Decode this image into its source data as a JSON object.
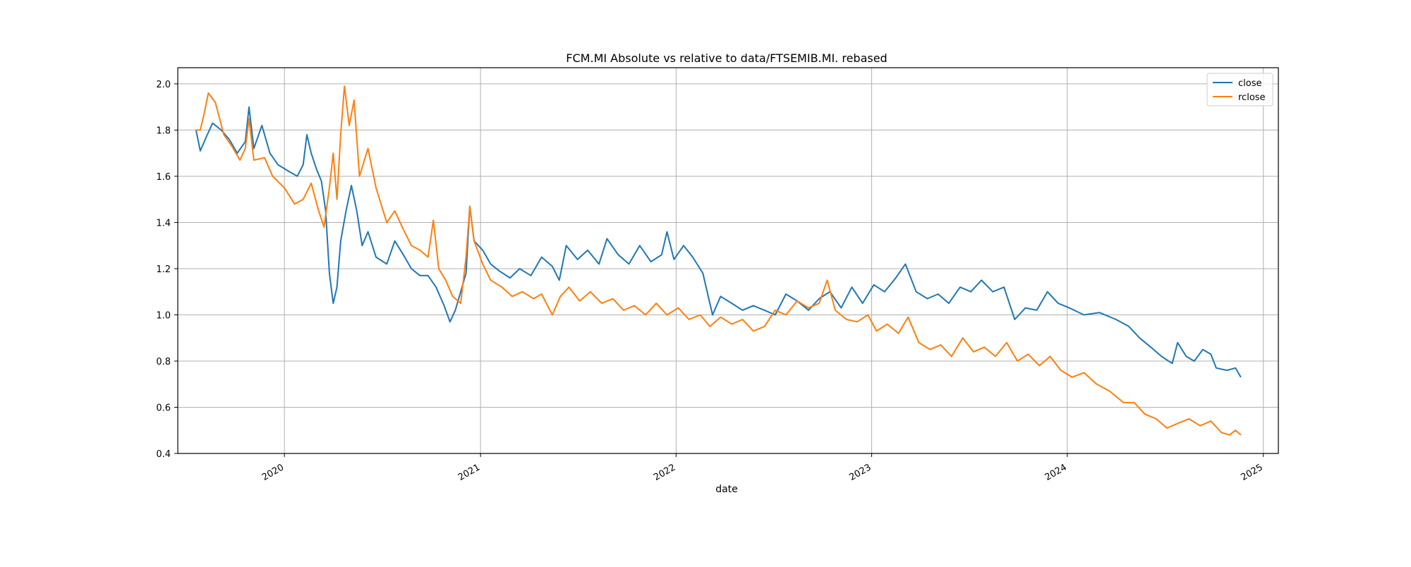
{
  "chart_data": {
    "type": "line",
    "title": "FCM.MI Absolute vs relative to data/FTSEMIB.MI. rebased",
    "xlabel": "date",
    "ylabel": "",
    "x_range": [
      "2019-06-16",
      "2025-01-29"
    ],
    "ylim": [
      0.4,
      2.07
    ],
    "y_ticks": [
      0.4,
      0.6,
      0.8,
      1.0,
      1.2,
      1.4,
      1.6,
      1.8,
      2.0
    ],
    "y_tick_labels": [
      "0.4",
      "0.6",
      "0.8",
      "1.0",
      "1.2",
      "1.4",
      "1.6",
      "1.8",
      "2.0"
    ],
    "x_ticks": [
      "2020-01-01",
      "2021-01-01",
      "2022-01-01",
      "2023-01-01",
      "2024-01-01",
      "2025-01-01"
    ],
    "x_tick_labels": [
      "2020",
      "2021",
      "2022",
      "2023",
      "2024",
      "2025"
    ],
    "grid": true,
    "legend_position": "top-right",
    "series": [
      {
        "name": "close",
        "color": "#1f77b4",
        "points": [
          [
            "2019-07-20",
            1.8
          ],
          [
            "2019-07-28",
            1.71
          ],
          [
            "2019-08-10",
            1.78
          ],
          [
            "2019-08-20",
            1.83
          ],
          [
            "2019-09-05",
            1.8
          ],
          [
            "2019-09-20",
            1.76
          ],
          [
            "2019-10-05",
            1.7
          ],
          [
            "2019-10-20",
            1.75
          ],
          [
            "2019-10-27",
            1.9
          ],
          [
            "2019-11-05",
            1.72
          ],
          [
            "2019-11-20",
            1.82
          ],
          [
            "2019-12-05",
            1.7
          ],
          [
            "2019-12-20",
            1.65
          ],
          [
            "2020-01-10",
            1.62
          ],
          [
            "2020-01-25",
            1.6
          ],
          [
            "2020-02-05",
            1.65
          ],
          [
            "2020-02-12",
            1.78
          ],
          [
            "2020-02-20",
            1.7
          ],
          [
            "2020-03-01",
            1.63
          ],
          [
            "2020-03-10",
            1.58
          ],
          [
            "2020-03-18",
            1.45
          ],
          [
            "2020-03-25",
            1.18
          ],
          [
            "2020-04-01",
            1.05
          ],
          [
            "2020-04-08",
            1.12
          ],
          [
            "2020-04-15",
            1.32
          ],
          [
            "2020-04-25",
            1.45
          ],
          [
            "2020-05-05",
            1.56
          ],
          [
            "2020-05-15",
            1.45
          ],
          [
            "2020-05-25",
            1.3
          ],
          [
            "2020-06-05",
            1.36
          ],
          [
            "2020-06-20",
            1.25
          ],
          [
            "2020-07-10",
            1.22
          ],
          [
            "2020-07-25",
            1.32
          ],
          [
            "2020-08-10",
            1.26
          ],
          [
            "2020-08-25",
            1.2
          ],
          [
            "2020-09-10",
            1.17
          ],
          [
            "2020-09-25",
            1.17
          ],
          [
            "2020-10-10",
            1.12
          ],
          [
            "2020-10-25",
            1.04
          ],
          [
            "2020-11-05",
            0.97
          ],
          [
            "2020-11-15",
            1.02
          ],
          [
            "2020-11-25",
            1.1
          ],
          [
            "2020-12-05",
            1.18
          ],
          [
            "2020-12-12",
            1.47
          ],
          [
            "2020-12-20",
            1.32
          ],
          [
            "2021-01-05",
            1.28
          ],
          [
            "2021-01-20",
            1.22
          ],
          [
            "2021-02-05",
            1.19
          ],
          [
            "2021-02-25",
            1.16
          ],
          [
            "2021-03-15",
            1.2
          ],
          [
            "2021-04-05",
            1.17
          ],
          [
            "2021-04-25",
            1.25
          ],
          [
            "2021-05-15",
            1.21
          ],
          [
            "2021-05-28",
            1.15
          ],
          [
            "2021-06-10",
            1.3
          ],
          [
            "2021-07-01",
            1.24
          ],
          [
            "2021-07-20",
            1.28
          ],
          [
            "2021-08-10",
            1.22
          ],
          [
            "2021-08-25",
            1.33
          ],
          [
            "2021-09-15",
            1.26
          ],
          [
            "2021-10-05",
            1.22
          ],
          [
            "2021-10-25",
            1.3
          ],
          [
            "2021-11-15",
            1.23
          ],
          [
            "2021-12-05",
            1.26
          ],
          [
            "2021-12-15",
            1.36
          ],
          [
            "2021-12-28",
            1.24
          ],
          [
            "2022-01-15",
            1.3
          ],
          [
            "2022-02-01",
            1.25
          ],
          [
            "2022-02-20",
            1.18
          ],
          [
            "2022-03-10",
            1.0
          ],
          [
            "2022-03-25",
            1.08
          ],
          [
            "2022-04-15",
            1.05
          ],
          [
            "2022-05-05",
            1.02
          ],
          [
            "2022-05-25",
            1.04
          ],
          [
            "2022-06-15",
            1.02
          ],
          [
            "2022-07-05",
            1.0
          ],
          [
            "2022-07-25",
            1.09
          ],
          [
            "2022-08-15",
            1.06
          ],
          [
            "2022-09-05",
            1.02
          ],
          [
            "2022-09-25",
            1.07
          ],
          [
            "2022-10-15",
            1.1
          ],
          [
            "2022-11-05",
            1.03
          ],
          [
            "2022-11-25",
            1.12
          ],
          [
            "2022-12-15",
            1.05
          ],
          [
            "2023-01-05",
            1.13
          ],
          [
            "2023-01-25",
            1.1
          ],
          [
            "2023-02-15",
            1.16
          ],
          [
            "2023-03-05",
            1.22
          ],
          [
            "2023-03-25",
            1.1
          ],
          [
            "2023-04-15",
            1.07
          ],
          [
            "2023-05-05",
            1.09
          ],
          [
            "2023-05-25",
            1.05
          ],
          [
            "2023-06-15",
            1.12
          ],
          [
            "2023-07-05",
            1.1
          ],
          [
            "2023-07-25",
            1.15
          ],
          [
            "2023-08-15",
            1.1
          ],
          [
            "2023-09-05",
            1.12
          ],
          [
            "2023-09-25",
            0.98
          ],
          [
            "2023-10-15",
            1.03
          ],
          [
            "2023-11-05",
            1.02
          ],
          [
            "2023-11-25",
            1.1
          ],
          [
            "2023-12-15",
            1.05
          ],
          [
            "2024-01-05",
            1.03
          ],
          [
            "2024-02-01",
            1.0
          ],
          [
            "2024-03-01",
            1.01
          ],
          [
            "2024-04-01",
            0.98
          ],
          [
            "2024-04-25",
            0.95
          ],
          [
            "2024-05-15",
            0.9
          ],
          [
            "2024-06-05",
            0.86
          ],
          [
            "2024-06-25",
            0.82
          ],
          [
            "2024-07-15",
            0.79
          ],
          [
            "2024-07-25",
            0.88
          ],
          [
            "2024-08-10",
            0.82
          ],
          [
            "2024-08-25",
            0.8
          ],
          [
            "2024-09-10",
            0.85
          ],
          [
            "2024-09-25",
            0.83
          ],
          [
            "2024-10-05",
            0.77
          ],
          [
            "2024-10-25",
            0.76
          ],
          [
            "2024-11-10",
            0.77
          ],
          [
            "2024-11-20",
            0.73
          ]
        ]
      },
      {
        "name": "rclose",
        "color": "#ff7f0e",
        "points": [
          [
            "2019-07-20",
            1.8
          ],
          [
            "2019-07-28",
            1.8
          ],
          [
            "2019-08-05",
            1.88
          ],
          [
            "2019-08-12",
            1.96
          ],
          [
            "2019-08-25",
            1.92
          ],
          [
            "2019-09-10",
            1.78
          ],
          [
            "2019-09-25",
            1.73
          ],
          [
            "2019-10-10",
            1.67
          ],
          [
            "2019-10-20",
            1.72
          ],
          [
            "2019-10-27",
            1.85
          ],
          [
            "2019-11-05",
            1.67
          ],
          [
            "2019-11-25",
            1.68
          ],
          [
            "2019-12-10",
            1.6
          ],
          [
            "2020-01-01",
            1.55
          ],
          [
            "2020-01-20",
            1.48
          ],
          [
            "2020-02-05",
            1.5
          ],
          [
            "2020-02-20",
            1.57
          ],
          [
            "2020-03-05",
            1.45
          ],
          [
            "2020-03-15",
            1.38
          ],
          [
            "2020-03-25",
            1.55
          ],
          [
            "2020-04-01",
            1.7
          ],
          [
            "2020-04-08",
            1.5
          ],
          [
            "2020-04-15",
            1.78
          ],
          [
            "2020-04-22",
            1.99
          ],
          [
            "2020-05-01",
            1.82
          ],
          [
            "2020-05-10",
            1.93
          ],
          [
            "2020-05-20",
            1.6
          ],
          [
            "2020-06-05",
            1.72
          ],
          [
            "2020-06-20",
            1.55
          ],
          [
            "2020-07-10",
            1.4
          ],
          [
            "2020-07-25",
            1.45
          ],
          [
            "2020-08-10",
            1.37
          ],
          [
            "2020-08-25",
            1.3
          ],
          [
            "2020-09-10",
            1.28
          ],
          [
            "2020-09-25",
            1.25
          ],
          [
            "2020-10-05",
            1.41
          ],
          [
            "2020-10-15",
            1.2
          ],
          [
            "2020-10-28",
            1.15
          ],
          [
            "2020-11-10",
            1.08
          ],
          [
            "2020-11-25",
            1.05
          ],
          [
            "2020-12-05",
            1.25
          ],
          [
            "2020-12-12",
            1.47
          ],
          [
            "2020-12-20",
            1.32
          ],
          [
            "2021-01-05",
            1.22
          ],
          [
            "2021-01-20",
            1.15
          ],
          [
            "2021-02-10",
            1.12
          ],
          [
            "2021-03-01",
            1.08
          ],
          [
            "2021-03-20",
            1.1
          ],
          [
            "2021-04-10",
            1.07
          ],
          [
            "2021-04-25",
            1.09
          ],
          [
            "2021-05-15",
            1.0
          ],
          [
            "2021-05-30",
            1.08
          ],
          [
            "2021-06-15",
            1.12
          ],
          [
            "2021-07-05",
            1.06
          ],
          [
            "2021-07-25",
            1.1
          ],
          [
            "2021-08-15",
            1.05
          ],
          [
            "2021-09-05",
            1.07
          ],
          [
            "2021-09-25",
            1.02
          ],
          [
            "2021-10-15",
            1.04
          ],
          [
            "2021-11-05",
            1.0
          ],
          [
            "2021-11-25",
            1.05
          ],
          [
            "2021-12-15",
            1.0
          ],
          [
            "2022-01-05",
            1.03
          ],
          [
            "2022-01-25",
            0.98
          ],
          [
            "2022-02-15",
            1.0
          ],
          [
            "2022-03-05",
            0.95
          ],
          [
            "2022-03-25",
            0.99
          ],
          [
            "2022-04-15",
            0.96
          ],
          [
            "2022-05-05",
            0.98
          ],
          [
            "2022-05-25",
            0.93
          ],
          [
            "2022-06-15",
            0.95
          ],
          [
            "2022-07-05",
            1.02
          ],
          [
            "2022-07-25",
            1.0
          ],
          [
            "2022-08-15",
            1.06
          ],
          [
            "2022-09-05",
            1.03
          ],
          [
            "2022-09-25",
            1.05
          ],
          [
            "2022-10-10",
            1.15
          ],
          [
            "2022-10-25",
            1.02
          ],
          [
            "2022-11-15",
            0.98
          ],
          [
            "2022-12-05",
            0.97
          ],
          [
            "2022-12-25",
            1.0
          ],
          [
            "2023-01-10",
            0.93
          ],
          [
            "2023-01-30",
            0.96
          ],
          [
            "2023-02-20",
            0.92
          ],
          [
            "2023-03-10",
            0.99
          ],
          [
            "2023-03-30",
            0.88
          ],
          [
            "2023-04-20",
            0.85
          ],
          [
            "2023-05-10",
            0.87
          ],
          [
            "2023-05-30",
            0.82
          ],
          [
            "2023-06-20",
            0.9
          ],
          [
            "2023-07-10",
            0.84
          ],
          [
            "2023-07-30",
            0.86
          ],
          [
            "2023-08-20",
            0.82
          ],
          [
            "2023-09-10",
            0.88
          ],
          [
            "2023-09-30",
            0.8
          ],
          [
            "2023-10-20",
            0.83
          ],
          [
            "2023-11-10",
            0.78
          ],
          [
            "2023-11-30",
            0.82
          ],
          [
            "2023-12-20",
            0.76
          ],
          [
            "2024-01-10",
            0.73
          ],
          [
            "2024-02-01",
            0.75
          ],
          [
            "2024-02-25",
            0.7
          ],
          [
            "2024-03-20",
            0.67
          ],
          [
            "2024-04-15",
            0.62
          ],
          [
            "2024-05-05",
            0.62
          ],
          [
            "2024-05-25",
            0.57
          ],
          [
            "2024-06-15",
            0.55
          ],
          [
            "2024-07-05",
            0.51
          ],
          [
            "2024-07-25",
            0.53
          ],
          [
            "2024-08-15",
            0.55
          ],
          [
            "2024-09-05",
            0.52
          ],
          [
            "2024-09-25",
            0.54
          ],
          [
            "2024-10-15",
            0.49
          ],
          [
            "2024-10-30",
            0.48
          ],
          [
            "2024-11-10",
            0.5
          ],
          [
            "2024-11-20",
            0.48
          ]
        ]
      }
    ]
  }
}
